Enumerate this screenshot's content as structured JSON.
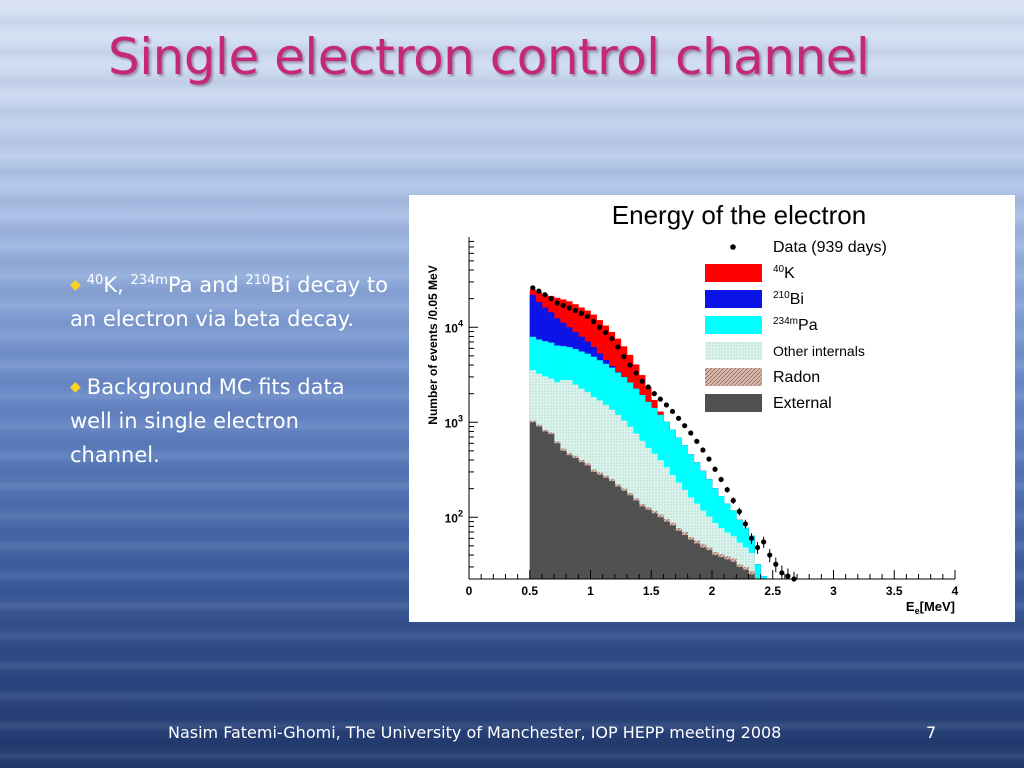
{
  "slide": {
    "title": "Single electron control channel",
    "bullets": [
      {
        "iso1": "40",
        "el1": "K, ",
        "iso2": "234m",
        "el2": "Pa and ",
        "iso3": "210",
        "el3": "Bi",
        "rest": " decay to an electron via beta decay."
      },
      {
        "text": "Background MC fits data well in single electron channel."
      }
    ],
    "footer": "Nasim Fatemi-Ghomi, The University of Manchester,  IOP HEPP meeting 2008",
    "page_number": "7"
  },
  "colors": {
    "title": "#c3287b",
    "bullet_marker": "#ffd21f",
    "k40": "#ff0000",
    "bi210": "#0a14e6",
    "pa234m": "#00ffff",
    "internals": "#dff3ee",
    "radon": "#c9a59a",
    "external": "#505050"
  },
  "icons": {
    "bullet_marker": "diamond-bullet-icon"
  },
  "chart_data": {
    "type": "area",
    "title": "Energy of the electron",
    "xlabel": "E_e[MeV]",
    "ylabel": "Number of events /0.05 MeV",
    "xlim": [
      0,
      4
    ],
    "ylim_log10": [
      1.35,
      4.95
    ],
    "yscale": "log",
    "x_ticks": [
      "0",
      "0.5",
      "1",
      "1.5",
      "2",
      "2.5",
      "3",
      "3.5",
      "4"
    ],
    "y_ticks": [
      {
        "base": "10",
        "exp": "2",
        "log": 2
      },
      {
        "base": "10",
        "exp": "3",
        "log": 3
      },
      {
        "base": "10",
        "exp": "4",
        "log": 4
      }
    ],
    "legend_position": "top-right",
    "bin_width": 0.05,
    "stack_series": [
      {
        "name": "External",
        "color_key": "external",
        "x": [
          0.5,
          0.55,
          0.6,
          0.65,
          0.7,
          0.75,
          0.8,
          0.85,
          0.9,
          0.95,
          1.0,
          1.05,
          1.1,
          1.15,
          1.2,
          1.25,
          1.3,
          1.35,
          1.4,
          1.45,
          1.5,
          1.55,
          1.6,
          1.65,
          1.7,
          1.75,
          1.8,
          1.85,
          1.9,
          1.95,
          2.0,
          2.05,
          2.1,
          2.15,
          2.2,
          2.25,
          2.3,
          2.35,
          2.4,
          2.45,
          2.5,
          2.55,
          2.6,
          2.65,
          2.7
        ],
        "values": [
          1000,
          900,
          800,
          750,
          600,
          500,
          450,
          420,
          380,
          350,
          300,
          280,
          260,
          240,
          210,
          190,
          170,
          150,
          130,
          120,
          110,
          100,
          90,
          82,
          72,
          65,
          58,
          53,
          48,
          45,
          40,
          38,
          36,
          34,
          30,
          28,
          25,
          0,
          0,
          0,
          0,
          0,
          0,
          0,
          0
        ]
      },
      {
        "name": "Radon",
        "color_key": "radon",
        "x": [
          0.5,
          0.55,
          0.6,
          0.65,
          0.7,
          0.75,
          0.8,
          0.85,
          0.9,
          0.95,
          1.0,
          1.05,
          1.1,
          1.15,
          1.2,
          1.25,
          1.3,
          1.35,
          1.4,
          1.45,
          1.5,
          1.55,
          1.6,
          1.65,
          1.7,
          1.75,
          1.8,
          1.85,
          1.9,
          1.95,
          2.0,
          2.05,
          2.1,
          2.15,
          2.2,
          2.25,
          2.3,
          2.35,
          2.4,
          2.45,
          2.5,
          2.55,
          2.6,
          2.65,
          2.7
        ],
        "values": [
          40,
          40,
          35,
          35,
          30,
          28,
          26,
          24,
          22,
          20,
          18,
          16,
          14,
          13,
          12,
          11,
          10,
          9,
          8,
          8,
          7,
          7,
          6,
          6,
          5,
          5,
          4,
          4,
          4,
          3,
          3,
          3,
          3,
          3,
          2,
          2,
          2,
          2,
          2,
          1,
          1,
          1,
          1,
          1,
          0
        ]
      },
      {
        "name": "Other internals",
        "color_key": "internals",
        "x": [
          0.5,
          0.55,
          0.6,
          0.65,
          0.7,
          0.75,
          0.8,
          0.85,
          0.9,
          0.95,
          1.0,
          1.05,
          1.1,
          1.15,
          1.2,
          1.25,
          1.3,
          1.35,
          1.4,
          1.45,
          1.5,
          1.55,
          1.6,
          1.65,
          1.7,
          1.75,
          1.8,
          1.85,
          1.9,
          1.95,
          2.0,
          2.05,
          2.1,
          2.15,
          2.2,
          2.25,
          2.3,
          2.35,
          2.4,
          2.45,
          2.5,
          2.55,
          2.6,
          2.65,
          2.7
        ],
        "values": [
          2500,
          2300,
          2200,
          2100,
          2000,
          2250,
          2300,
          2050,
          1850,
          1700,
          1520,
          1400,
          1250,
          1100,
          970,
          840,
          720,
          600,
          500,
          410,
          350,
          290,
          240,
          190,
          155,
          125,
          100,
          82,
          66,
          54,
          44,
          36,
          30,
          26,
          22,
          18,
          15,
          14,
          11,
          9,
          6,
          4,
          3,
          2,
          0
        ]
      },
      {
        "name": "234mPa",
        "color_key": "pa234m",
        "x": [
          0.5,
          0.55,
          0.6,
          0.65,
          0.7,
          0.75,
          0.8,
          0.85,
          0.9,
          0.95,
          1.0,
          1.05,
          1.1,
          1.15,
          1.2,
          1.25,
          1.3,
          1.35,
          1.4,
          1.45,
          1.5,
          1.55,
          1.6,
          1.65,
          1.7,
          1.75,
          1.8,
          1.85,
          1.9,
          1.95,
          2.0,
          2.05,
          2.1,
          2.15,
          2.2,
          2.25,
          2.3,
          2.35,
          2.4,
          2.45,
          2.5,
          2.55,
          2.6,
          2.65,
          2.7
        ],
        "values": [
          4400,
          4200,
          4100,
          4000,
          3800,
          3550,
          3400,
          3400,
          3300,
          3200,
          3050,
          2800,
          2600,
          2400,
          2150,
          1950,
          1720,
          1500,
          1300,
          1100,
          950,
          800,
          680,
          560,
          460,
          380,
          300,
          240,
          190,
          150,
          115,
          90,
          70,
          55,
          40,
          30,
          22,
          16,
          11,
          8,
          5,
          3,
          2,
          1,
          0
        ]
      },
      {
        "name": "210Bi",
        "color_key": "bi210",
        "x": [
          0.5,
          0.55,
          0.6,
          0.65,
          0.7,
          0.75,
          0.8,
          0.85,
          0.9,
          0.95,
          1.0,
          1.05,
          1.1,
          1.15,
          1.2,
          1.25,
          1.3,
          1.35,
          1.4,
          1.45,
          1.5,
          1.55,
          1.6,
          1.65,
          1.7,
          1.75,
          1.8,
          1.85,
          1.9,
          1.95,
          2.0,
          2.05,
          2.1,
          2.15,
          2.2,
          2.25,
          2.3,
          2.35,
          2.4,
          2.45,
          2.5,
          2.55,
          2.6,
          2.65,
          2.7
        ],
        "values": [
          14000,
          11000,
          9000,
          7500,
          6000,
          4800,
          3800,
          3000,
          2400,
          1800,
          1300,
          800,
          400,
          150,
          50,
          10,
          0,
          0,
          0,
          0,
          0,
          0,
          0,
          0,
          0,
          0,
          0,
          0,
          0,
          0,
          0,
          0,
          0,
          0,
          0,
          0,
          0,
          0,
          0,
          0,
          0,
          0,
          0,
          0,
          0
        ]
      },
      {
        "name": "40K",
        "color_key": "k40",
        "x": [
          0.5,
          0.55,
          0.6,
          0.65,
          0.7,
          0.75,
          0.8,
          0.85,
          0.9,
          0.95,
          1.0,
          1.05,
          1.1,
          1.15,
          1.2,
          1.25,
          1.3,
          1.35,
          1.4,
          1.45,
          1.5,
          1.55,
          1.6,
          1.65,
          1.7,
          1.75,
          1.8,
          1.85,
          1.9,
          1.95,
          2.0,
          2.05,
          2.1,
          2.15,
          2.2,
          2.25,
          2.3,
          2.35,
          2.4,
          2.45,
          2.5,
          2.55,
          2.6,
          2.65,
          2.7
        ],
        "values": [
          3000,
          5000,
          6000,
          7000,
          8000,
          8500,
          8800,
          8600,
          8200,
          7900,
          7400,
          6600,
          5900,
          5000,
          4200,
          3300,
          2500,
          1800,
          1200,
          700,
          300,
          100,
          0,
          0,
          0,
          0,
          0,
          0,
          0,
          0,
          0,
          0,
          0,
          0,
          0,
          0,
          0,
          0,
          0,
          0,
          0,
          0,
          0,
          0,
          0
        ]
      }
    ],
    "data_series": {
      "name": "Data (939 days)",
      "x": [
        0.525,
        0.575,
        0.625,
        0.675,
        0.725,
        0.775,
        0.825,
        0.875,
        0.925,
        0.975,
        1.025,
        1.075,
        1.125,
        1.175,
        1.225,
        1.275,
        1.325,
        1.375,
        1.425,
        1.475,
        1.525,
        1.575,
        1.625,
        1.675,
        1.725,
        1.775,
        1.825,
        1.875,
        1.925,
        1.975,
        2.025,
        2.075,
        2.125,
        2.175,
        2.225,
        2.275,
        2.325,
        2.375,
        2.425,
        2.475,
        2.525,
        2.575,
        2.625,
        2.675
      ],
      "values": [
        26000,
        24000,
        22000,
        20000,
        18000,
        17000,
        16000,
        15000,
        14000,
        13000,
        11500,
        10000,
        8800,
        7600,
        6200,
        4900,
        4000,
        3300,
        2700,
        2350,
        2000,
        1750,
        1520,
        1300,
        1100,
        920,
        770,
        630,
        510,
        410,
        320,
        250,
        195,
        150,
        115,
        85,
        60,
        48,
        55,
        40,
        32,
        26,
        24,
        22
      ]
    },
    "legend": [
      {
        "label": "Data (939 days)",
        "marker": "dot"
      },
      {
        "sup": "40",
        "label": "K",
        "color_key": "k40"
      },
      {
        "sup": "210",
        "label": "Bi",
        "color_key": "bi210"
      },
      {
        "sup": "234m",
        "label": "Pa",
        "color_key": "pa234m"
      },
      {
        "label": "Other internals",
        "color_key": "internals",
        "hatched": true
      },
      {
        "label": "Radon",
        "color_key": "radon",
        "hatched": true
      },
      {
        "label": "External",
        "color_key": "external"
      }
    ]
  }
}
